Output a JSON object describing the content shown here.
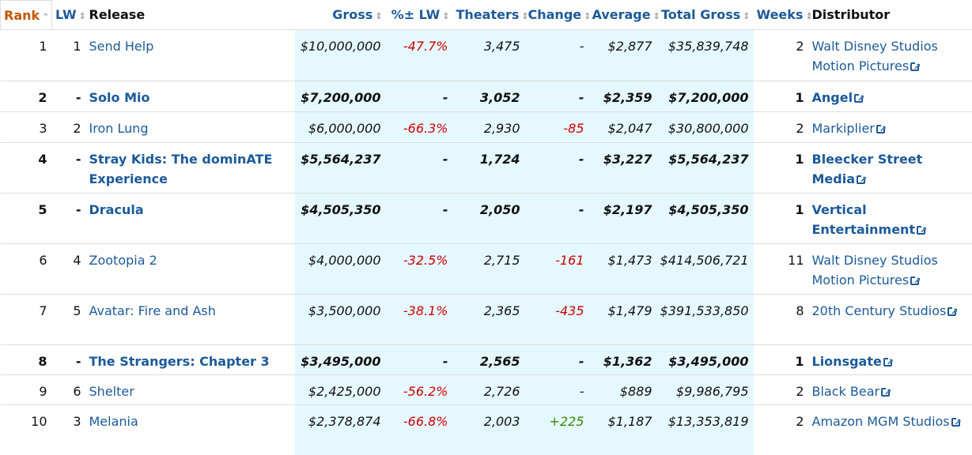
{
  "headers": {
    "rank": "Rank",
    "lw": "LW",
    "release": "Release",
    "gross": "Gross",
    "pct_lw": "%± LW",
    "theaters": "Theaters",
    "change": "Change",
    "average": "Average",
    "total_gross": "Total Gross",
    "weeks": "Weeks",
    "distributor": "Distributor"
  },
  "rows": [
    {
      "rank": "1",
      "lw": "1",
      "release": "Send Help",
      "gross": "$10,000,000",
      "pct": "-47.7%",
      "theaters": "3,475",
      "change": "-",
      "average": "$2,877",
      "total": "$35,839,748",
      "weeks": "2",
      "dist": "Walt Disney Studios Motion Pictures",
      "new": false
    },
    {
      "rank": "2",
      "lw": "-",
      "release": "Solo Mio",
      "gross": "$7,200,000",
      "pct": "-",
      "theaters": "3,052",
      "change": "-",
      "average": "$2,359",
      "total": "$7,200,000",
      "weeks": "1",
      "dist": "Angel",
      "new": true
    },
    {
      "rank": "3",
      "lw": "2",
      "release": "Iron Lung",
      "gross": "$6,000,000",
      "pct": "-66.3%",
      "theaters": "2,930",
      "change": "-85",
      "average": "$2,047",
      "total": "$30,800,000",
      "weeks": "2",
      "dist": "Markiplier",
      "new": false
    },
    {
      "rank": "4",
      "lw": "-",
      "release": "Stray Kids: The dominATE Experience",
      "gross": "$5,564,237",
      "pct": "-",
      "theaters": "1,724",
      "change": "-",
      "average": "$3,227",
      "total": "$5,564,237",
      "weeks": "1",
      "dist": "Bleecker Street Media",
      "new": true
    },
    {
      "rank": "5",
      "lw": "-",
      "release": "Dracula",
      "gross": "$4,505,350",
      "pct": "-",
      "theaters": "2,050",
      "change": "-",
      "average": "$2,197",
      "total": "$4,505,350",
      "weeks": "1",
      "dist": "Vertical Entertainment",
      "new": true
    },
    {
      "rank": "6",
      "lw": "4",
      "release": "Zootopia 2",
      "gross": "$4,000,000",
      "pct": "-32.5%",
      "theaters": "2,715",
      "change": "-161",
      "average": "$1,473",
      "total": "$414,506,721",
      "weeks": "11",
      "dist": "Walt Disney Studios Motion Pictures",
      "new": false
    },
    {
      "rank": "7",
      "lw": "5",
      "release": "Avatar: Fire and Ash",
      "gross": "$3,500,000",
      "pct": "-38.1%",
      "theaters": "2,365",
      "change": "-435",
      "average": "$1,479",
      "total": "$391,533,850",
      "weeks": "8",
      "dist": "20th Century Studios",
      "new": false
    },
    {
      "rank": "8",
      "lw": "-",
      "release": "The Strangers: Chapter 3",
      "gross": "$3,495,000",
      "pct": "-",
      "theaters": "2,565",
      "change": "-",
      "average": "$1,362",
      "total": "$3,495,000",
      "weeks": "1",
      "dist": "Lionsgate",
      "new": true
    },
    {
      "rank": "9",
      "lw": "6",
      "release": "Shelter",
      "gross": "$2,425,000",
      "pct": "-56.2%",
      "theaters": "2,726",
      "change": "-",
      "average": "$889",
      "total": "$9,986,795",
      "weeks": "2",
      "dist": "Black Bear",
      "new": false
    },
    {
      "rank": "10",
      "lw": "3",
      "release": "Melania",
      "gross": "$2,378,874",
      "pct": "-66.8%",
      "theaters": "2,003",
      "change": "+225",
      "average": "$1,187",
      "total": "$13,353,819",
      "weeks": "2",
      "dist": "Amazon MGM Studios",
      "new": false
    }
  ]
}
